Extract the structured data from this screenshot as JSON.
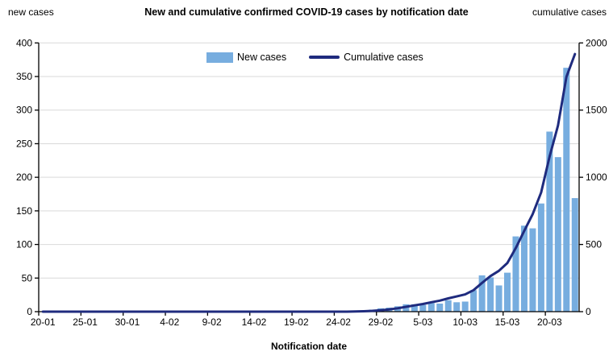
{
  "header": {
    "title": "New and cumulative confirmed COVID-19 cases by notification date",
    "left_axis_title": "new cases",
    "right_axis_title": "cumulative cases"
  },
  "x_axis_title": "Notification date",
  "chart_data": {
    "type": "bar",
    "title": "New and cumulative confirmed COVID-19 cases by notification date",
    "xlabel": "Notification date",
    "ylabel_left": "new cases",
    "ylabel_right": "cumulative cases",
    "grid": true,
    "legend_position": "top-center-inside",
    "left_axis": {
      "min": 0,
      "max": 400,
      "step": 50
    },
    "right_axis": {
      "min": 0,
      "max": 2000,
      "step": 500
    },
    "x_tick_interval": 5,
    "x_tick_labels": [
      "20-01",
      "25-01",
      "30-01",
      "4-02",
      "9-02",
      "14-02",
      "19-02",
      "24-02",
      "29-02",
      "5-03",
      "10-03",
      "15-03",
      "20-03"
    ],
    "dates": [
      "20-01",
      "21-01",
      "22-01",
      "23-01",
      "24-01",
      "25-01",
      "26-01",
      "27-01",
      "28-01",
      "29-01",
      "30-01",
      "31-01",
      "1-02",
      "2-02",
      "3-02",
      "4-02",
      "5-02",
      "6-02",
      "7-02",
      "8-02",
      "9-02",
      "10-02",
      "11-02",
      "12-02",
      "13-02",
      "14-02",
      "15-02",
      "16-02",
      "17-02",
      "18-02",
      "19-02",
      "20-02",
      "21-02",
      "22-02",
      "23-02",
      "24-02",
      "25-02",
      "26-02",
      "27-02",
      "28-02",
      "29-02",
      "1-03",
      "2-03",
      "3-03",
      "4-03",
      "5-03",
      "6-03",
      "7-03",
      "8-03",
      "9-03",
      "10-03",
      "11-03",
      "12-03",
      "13-03",
      "14-03",
      "15-03",
      "16-03",
      "17-03",
      "18-03",
      "19-03",
      "20-03",
      "21-03",
      "22-03",
      "23-03"
    ],
    "series": [
      {
        "name": "New cases",
        "type": "bar",
        "axis": "left",
        "color": "#77ADDF",
        "values": [
          0,
          0,
          0,
          0,
          0,
          0,
          0,
          0,
          0,
          0,
          0,
          0,
          0,
          0,
          0,
          0,
          0,
          0,
          0,
          0,
          0,
          0,
          0,
          0,
          0,
          0,
          0,
          0,
          0,
          0,
          0,
          0,
          0,
          0,
          0,
          0,
          0,
          1,
          2,
          3,
          5,
          6,
          8,
          11,
          11,
          10,
          13,
          12,
          17,
          14,
          15,
          32,
          54,
          51,
          39,
          58,
          112,
          128,
          124,
          161,
          268,
          230,
          363,
          169
        ]
      },
      {
        "name": "Cumulative cases",
        "type": "line",
        "axis": "right",
        "color": "#1F2B7E",
        "values": [
          0,
          0,
          0,
          0,
          0,
          0,
          0,
          0,
          0,
          0,
          0,
          0,
          0,
          0,
          0,
          0,
          0,
          0,
          0,
          0,
          0,
          0,
          0,
          0,
          0,
          0,
          0,
          0,
          0,
          0,
          0,
          0,
          0,
          0,
          0,
          0,
          0,
          1,
          3,
          6,
          11,
          17,
          25,
          36,
          47,
          57,
          70,
          82,
          99,
          113,
          128,
          160,
          214,
          265,
          304,
          362,
          474,
          602,
          726,
          887,
          1155,
          1385,
          1748,
          1917
        ]
      }
    ],
    "colors": {
      "grid": "#D9D9D9",
      "axis": "#000000",
      "text": "#000000"
    }
  }
}
